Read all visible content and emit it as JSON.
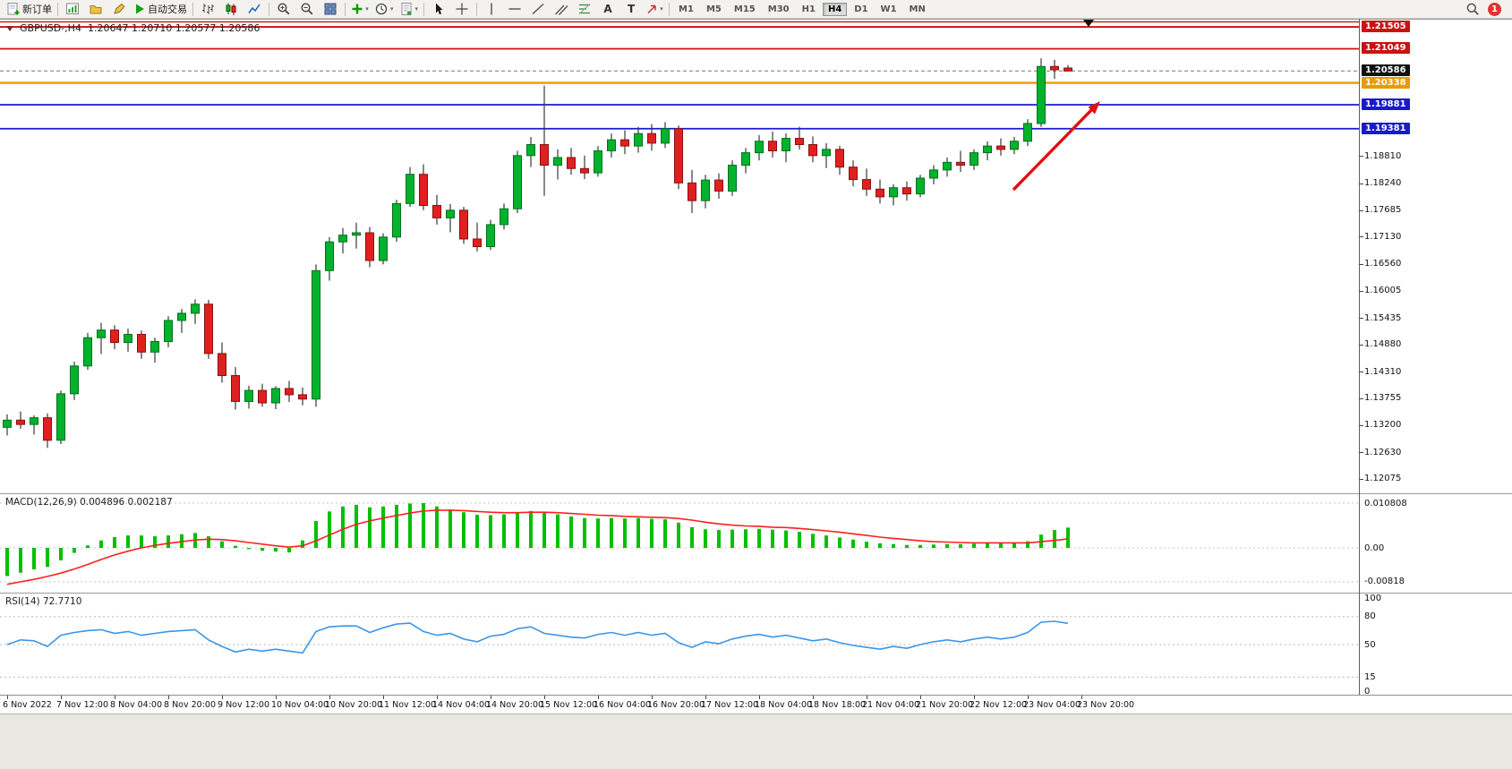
{
  "window": {
    "chart_title": "GBPUSD-,H4",
    "ohlc": "1.20647 1.20710 1.20577 1.20586"
  },
  "toolbar": {
    "new_order_label": "新订单",
    "auto_trading_label": "自动交易",
    "text_tool_label": "A",
    "label_tool_label": "T",
    "timeframes": [
      "M1",
      "M5",
      "M15",
      "M30",
      "H1",
      "H4",
      "D1",
      "W1",
      "MN"
    ],
    "active_timeframe": "H4",
    "notification_count": "1"
  },
  "annotation": {
    "arrow_color": "#e01010"
  },
  "chart_data": [
    {
      "type": "candlestick",
      "symbol": "GBPUSD-",
      "timeframe": "H4",
      "title": "GBPUSD-,H4 1.20647 1.20710 1.20577 1.20586",
      "ohlc_last": {
        "open": 1.20647,
        "high": 1.2071,
        "low": 1.20577,
        "close": 1.20586
      },
      "current_price": 1.20586,
      "ylim": [
        1.1183,
        1.216
      ],
      "x_label_step": 4,
      "x_labels": [
        "6 Nov 2022",
        "7 Nov 12:00",
        "8 Nov 04:00",
        "8 Nov 20:00",
        "9 Nov 12:00",
        "10 Nov 04:00",
        "10 Nov 20:00",
        "11 Nov 12:00",
        "14 Nov 04:00",
        "14 Nov 20:00",
        "15 Nov 12:00",
        "16 Nov 04:00",
        "16 Nov 20:00",
        "17 Nov 12:00",
        "18 Nov 04:00",
        "18 Nov 18:00",
        "21 Nov 04:00",
        "21 Nov 20:00",
        "22 Nov 12:00",
        "23 Nov 04:00",
        "23 Nov 20:00"
      ],
      "axis_plain_labels": [
        "1.18810",
        "1.18240",
        "1.17685",
        "1.17130",
        "1.16560",
        "1.16005",
        "1.15435",
        "1.14880",
        "1.14310",
        "1.13755",
        "1.13200",
        "1.12630",
        "1.12075"
      ],
      "hlines": [
        {
          "price": 1.2161,
          "color": "#cc1111",
          "width": 1.4,
          "label": false
        },
        {
          "price": 1.21505,
          "color": "#cc1111",
          "width": 1.8,
          "label": true
        },
        {
          "price": 1.21049,
          "color": "#cc1111",
          "width": 1.8,
          "label": true
        },
        {
          "price": 1.20338,
          "color": "#e89b00",
          "width": 2.4,
          "label": true
        },
        {
          "price": 1.19881,
          "color": "#1a1acc",
          "width": 1.8,
          "label": true
        },
        {
          "price": 1.19381,
          "color": "#1a1acc",
          "width": 1.8,
          "label": true
        }
      ],
      "colors": {
        "bull": "#00b22c",
        "bull_stroke": "#00701c",
        "bear": "#e02020",
        "bear_stroke": "#8b0f0f",
        "wick": "#3a3a3a",
        "current_box": "#111111"
      },
      "candles": [
        [
          1.1315,
          1.1342,
          1.1298,
          1.133
        ],
        [
          1.133,
          1.1348,
          1.1312,
          1.1321
        ],
        [
          1.1321,
          1.134,
          1.13,
          1.1335
        ],
        [
          1.1335,
          1.1344,
          1.1272,
          1.1288
        ],
        [
          1.1288,
          1.1392,
          1.128,
          1.1385
        ],
        [
          1.1385,
          1.1452,
          1.1372,
          1.1443
        ],
        [
          1.1443,
          1.1512,
          1.1435,
          1.1502
        ],
        [
          1.1502,
          1.1533,
          1.1468,
          1.1518
        ],
        [
          1.1518,
          1.1528,
          1.1478,
          1.1492
        ],
        [
          1.1492,
          1.1521,
          1.1473,
          1.1509
        ],
        [
          1.1509,
          1.1517,
          1.1458,
          1.1472
        ],
        [
          1.1472,
          1.1502,
          1.145,
          1.1494
        ],
        [
          1.1494,
          1.1547,
          1.1482,
          1.1538
        ],
        [
          1.1538,
          1.1562,
          1.1512,
          1.1553
        ],
        [
          1.1553,
          1.1582,
          1.1531,
          1.1572
        ],
        [
          1.1572,
          1.1581,
          1.1458,
          1.1469
        ],
        [
          1.1469,
          1.1492,
          1.1408,
          1.1423
        ],
        [
          1.1423,
          1.1441,
          1.1352,
          1.1369
        ],
        [
          1.1369,
          1.1402,
          1.1354,
          1.1392
        ],
        [
          1.1392,
          1.1406,
          1.1358,
          1.1366
        ],
        [
          1.1366,
          1.1401,
          1.1353,
          1.1396
        ],
        [
          1.1396,
          1.1412,
          1.1368,
          1.1383
        ],
        [
          1.1383,
          1.1398,
          1.1361,
          1.1374
        ],
        [
          1.1374,
          1.1655,
          1.1358,
          1.1642
        ],
        [
          1.1642,
          1.1712,
          1.1621,
          1.1702
        ],
        [
          1.1702,
          1.1731,
          1.1678,
          1.1716
        ],
        [
          1.1716,
          1.1742,
          1.1688,
          1.1721
        ],
        [
          1.1721,
          1.1733,
          1.1649,
          1.1663
        ],
        [
          1.1663,
          1.172,
          1.1655,
          1.1712
        ],
        [
          1.1712,
          1.179,
          1.1702,
          1.1782
        ],
        [
          1.1782,
          1.1858,
          1.1775,
          1.1843
        ],
        [
          1.1843,
          1.1864,
          1.1768,
          1.1778
        ],
        [
          1.1778,
          1.18,
          1.1738,
          1.1752
        ],
        [
          1.1752,
          1.1781,
          1.1722,
          1.1768
        ],
        [
          1.1768,
          1.1775,
          1.1698,
          1.1708
        ],
        [
          1.1708,
          1.1742,
          1.1682,
          1.1692
        ],
        [
          1.1692,
          1.1748,
          1.1685,
          1.1738
        ],
        [
          1.1738,
          1.1782,
          1.1728,
          1.1771
        ],
        [
          1.1771,
          1.1892,
          1.1762,
          1.1882
        ],
        [
          1.1882,
          1.1921,
          1.1858,
          1.1905
        ],
        [
          1.1905,
          1.2028,
          1.1798,
          1.1862
        ],
        [
          1.1862,
          1.1895,
          1.1832,
          1.1878
        ],
        [
          1.1878,
          1.1898,
          1.1842,
          1.1855
        ],
        [
          1.1855,
          1.1882,
          1.1833,
          1.1846
        ],
        [
          1.1846,
          1.1902,
          1.1838,
          1.1892
        ],
        [
          1.1892,
          1.1928,
          1.1878,
          1.1915
        ],
        [
          1.1915,
          1.1935,
          1.1885,
          1.1902
        ],
        [
          1.1902,
          1.1942,
          1.1888,
          1.1928
        ],
        [
          1.1928,
          1.1948,
          1.1892,
          1.1908
        ],
        [
          1.1908,
          1.1952,
          1.1898,
          1.1938
        ],
        [
          1.1938,
          1.1945,
          1.1812,
          1.1825
        ],
        [
          1.1825,
          1.1852,
          1.1762,
          1.1788
        ],
        [
          1.1788,
          1.1842,
          1.1772,
          1.1831
        ],
        [
          1.1831,
          1.1845,
          1.1792,
          1.1808
        ],
        [
          1.1808,
          1.1872,
          1.1798,
          1.1862
        ],
        [
          1.1862,
          1.1898,
          1.1845,
          1.1888
        ],
        [
          1.1888,
          1.1925,
          1.1872,
          1.1912
        ],
        [
          1.1912,
          1.1932,
          1.1878,
          1.1892
        ],
        [
          1.1892,
          1.1928,
          1.1868,
          1.1918
        ],
        [
          1.1918,
          1.1942,
          1.1895,
          1.1905
        ],
        [
          1.1905,
          1.1922,
          1.1868,
          1.1882
        ],
        [
          1.1882,
          1.1908,
          1.1856,
          1.1895
        ],
        [
          1.1895,
          1.1902,
          1.1842,
          1.1858
        ],
        [
          1.1858,
          1.1872,
          1.1818,
          1.1832
        ],
        [
          1.1832,
          1.1855,
          1.1798,
          1.1812
        ],
        [
          1.1812,
          1.1832,
          1.1782,
          1.1796
        ],
        [
          1.1796,
          1.1822,
          1.1778,
          1.1815
        ],
        [
          1.1815,
          1.1828,
          1.1788,
          1.1802
        ],
        [
          1.1802,
          1.1842,
          1.1795,
          1.1835
        ],
        [
          1.1835,
          1.1862,
          1.1822,
          1.1852
        ],
        [
          1.1852,
          1.1878,
          1.1838,
          1.1868
        ],
        [
          1.1868,
          1.1892,
          1.1848,
          1.1862
        ],
        [
          1.1862,
          1.1895,
          1.1852,
          1.1888
        ],
        [
          1.1888,
          1.1912,
          1.1872,
          1.1902
        ],
        [
          1.1902,
          1.1918,
          1.1882,
          1.1895
        ],
        [
          1.1895,
          1.1921,
          1.1885,
          1.1912
        ],
        [
          1.1912,
          1.1958,
          1.1902,
          1.1949
        ],
        [
          1.1949,
          1.2085,
          1.1942,
          1.2068
        ],
        [
          1.2068,
          1.2082,
          1.2042,
          1.2061
        ],
        [
          1.20647,
          1.2071,
          1.20577,
          1.20586
        ]
      ]
    },
    {
      "type": "macd",
      "label": "MACD(12,26,9) 0.004896 0.002187",
      "y_labels": [
        "0.010808",
        "0.00",
        "-0.00818"
      ],
      "colors": {
        "hist": "#00c000",
        "signal": "#ff2020"
      },
      "values_hist": [
        -0.0068,
        -0.006,
        -0.0052,
        -0.0046,
        -0.003,
        -0.0012,
        0.0006,
        0.0018,
        0.0026,
        0.003,
        0.003,
        0.0028,
        0.003,
        0.0033,
        0.0036,
        0.0028,
        0.0016,
        0.0005,
        -0.0003,
        -0.0007,
        -0.0009,
        -0.0011,
        0.0018,
        0.0065,
        0.0088,
        0.01,
        0.0104,
        0.0098,
        0.01,
        0.0104,
        0.0107,
        0.0108,
        0.01,
        0.0093,
        0.0086,
        0.008,
        0.0079,
        0.0081,
        0.0085,
        0.0089,
        0.0087,
        0.0081,
        0.0076,
        0.0072,
        0.0071,
        0.0072,
        0.0071,
        0.0072,
        0.007,
        0.0069,
        0.0061,
        0.005,
        0.0045,
        0.0043,
        0.0044,
        0.0045,
        0.0046,
        0.0044,
        0.0042,
        0.0039,
        0.0034,
        0.003,
        0.0025,
        0.002,
        0.0015,
        0.0011,
        0.0009,
        0.0007,
        0.0007,
        0.0008,
        0.0009,
        0.0009,
        0.001,
        0.0011,
        0.0011,
        0.0012,
        0.0016,
        0.0032,
        0.0043,
        0.004896
      ],
      "values_signal": [
        -0.0088,
        -0.0082,
        -0.0076,
        -0.0069,
        -0.0061,
        -0.0051,
        -0.004,
        -0.0028,
        -0.0017,
        -0.0008,
        0.0,
        0.0006,
        0.0011,
        0.0015,
        0.0019,
        0.0021,
        0.002,
        0.0017,
        0.0013,
        0.0009,
        0.0005,
        0.0002,
        0.0005,
        0.0017,
        0.0031,
        0.0045,
        0.0057,
        0.0065,
        0.0072,
        0.0078,
        0.0084,
        0.0089,
        0.0091,
        0.0091,
        0.009,
        0.0088,
        0.0086,
        0.0085,
        0.0085,
        0.0086,
        0.0086,
        0.0085,
        0.0083,
        0.0081,
        0.0079,
        0.0078,
        0.0076,
        0.0075,
        0.0074,
        0.0073,
        0.0071,
        0.0067,
        0.0062,
        0.0058,
        0.0055,
        0.0053,
        0.0052,
        0.005,
        0.0049,
        0.0047,
        0.0044,
        0.0041,
        0.0038,
        0.0034,
        0.003,
        0.0026,
        0.0023,
        0.002,
        0.0017,
        0.0015,
        0.0014,
        0.0013,
        0.0012,
        0.0012,
        0.0012,
        0.0012,
        0.0012,
        0.0015,
        0.0018,
        0.002187
      ]
    },
    {
      "type": "rsi",
      "label": "RSI(14) 72.7710",
      "levels": [
        80,
        50,
        15
      ],
      "y_labels": [
        "100",
        "80",
        "50",
        "15",
        "0"
      ],
      "colors": {
        "line": "#3a96e8"
      },
      "values": [
        50,
        55,
        54,
        48,
        60,
        63,
        65,
        66,
        62,
        64,
        60,
        62,
        64,
        65,
        66,
        55,
        48,
        42,
        45,
        43,
        45,
        43,
        41,
        64,
        69,
        70,
        70,
        63,
        68,
        72,
        73,
        64,
        60,
        62,
        56,
        53,
        59,
        61,
        67,
        69,
        62,
        60,
        58,
        57,
        61,
        63,
        60,
        63,
        60,
        62,
        52,
        47,
        53,
        51,
        56,
        59,
        61,
        58,
        60,
        57,
        54,
        56,
        52,
        49,
        47,
        45,
        48,
        46,
        50,
        53,
        55,
        53,
        56,
        58,
        56,
        58,
        63,
        74,
        75,
        72.77
      ]
    }
  ]
}
